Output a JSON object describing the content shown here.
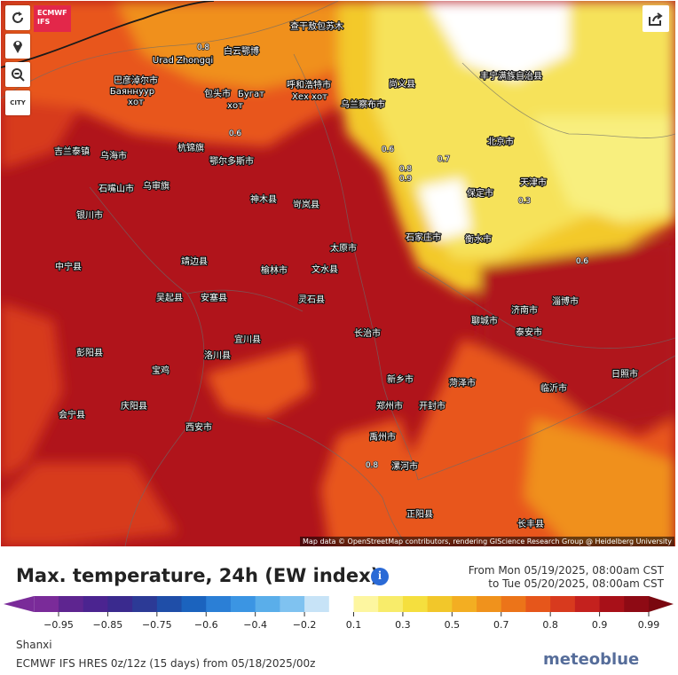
{
  "header": {
    "logo": [
      "ECMWF",
      "IFS"
    ]
  },
  "controls": {
    "city_button": "CITY"
  },
  "map": {
    "labels": [
      "查干敖包苏木",
      "白云鄂博",
      "Urad Zhongqi",
      "巴彦淖尔市",
      "Баяннуур",
      "хот",
      "包头市",
      "Бугат",
      "хот",
      "呼和浩特市",
      "Хех хот",
      "乌兰察布市",
      "尚义县",
      "丰宁满族自治县",
      "北京市",
      "天津市",
      "保定市",
      "石家庄市",
      "衡水市",
      "吉兰泰镇",
      "乌海市",
      "鄂尔多斯市",
      "杭锦旗",
      "石嘴山市",
      "银川市",
      "乌审旗",
      "神木县",
      "岢岚县",
      "太原市",
      "文水县",
      "榆林市",
      "靖边县",
      "中宁县",
      "吴起县",
      "安塞县",
      "宜川县",
      "洛川县",
      "灵石县",
      "长治市",
      "济南市",
      "淄博市",
      "泰安市",
      "聊城市",
      "菏泽市",
      "新乡市",
      "郑州市",
      "开封市",
      "临沂市",
      "日照市",
      "西安市",
      "禹州市",
      "漯河市",
      "正阳县",
      "长丰县",
      "会宁县",
      "庆阳县",
      "彭阳县",
      "宝鸡"
    ],
    "contour_labels": [
      "0.8",
      "0.6",
      "0.6",
      "0.8",
      "0.9",
      "0.7",
      "0.3",
      "0.6",
      "0.8"
    ],
    "attribution": "Map data © OpenStreetMap contributors, rendering GIScience Research Group @ Heidelberg University"
  },
  "legend": {
    "title": "Max. temperature, 24h (EW index)",
    "period_from": "From Mon 05/19/2025, 08:00am CST",
    "period_to": "to Tue 05/20/2025, 08:00am CST",
    "ticks": [
      "−0.95",
      "−0.85",
      "−0.75",
      "−0.6",
      "−0.4",
      "−0.2",
      "0.1",
      "0.3",
      "0.5",
      "0.7",
      "0.8",
      "0.9",
      "0.99"
    ],
    "colors": [
      "#7a2b99",
      "#5e2590",
      "#4b2490",
      "#3a2a8e",
      "#2c3a96",
      "#1f4ea8",
      "#1b63be",
      "#2b7fd6",
      "#3b95e3",
      "#5aaeea",
      "#7fc2f0",
      "#c7e3f7",
      "#ffffff",
      "#fdf6a0",
      "#f8ec6a",
      "#f5df3e",
      "#f2c72a",
      "#f3ae22",
      "#f0921c",
      "#ec7419",
      "#e6561b",
      "#d83a1e",
      "#c4211e",
      "#a81018",
      "#8e0a14"
    ]
  },
  "footer": {
    "region": "Shanxi",
    "model": "ECMWF IFS HRES 0z/12z (15 days) from 05/18/2025/00z",
    "watermark": "meteoblue"
  }
}
